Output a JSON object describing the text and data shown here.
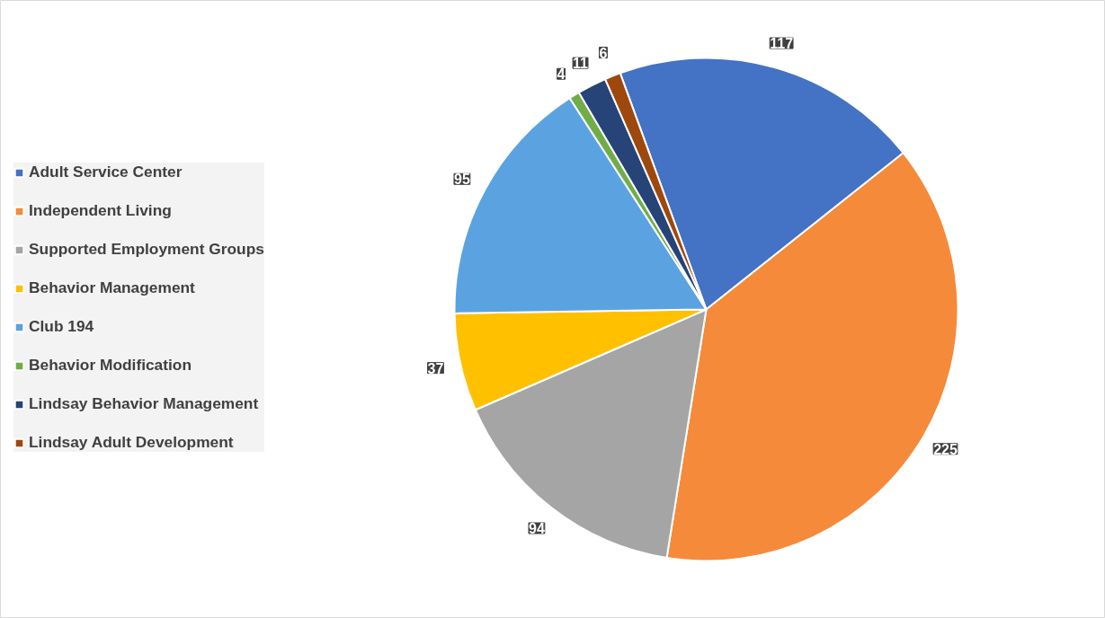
{
  "chart_data": {
    "type": "pie",
    "categories": [
      "Adult Service Center",
      "Independent Living",
      "Supported Employment Groups",
      "Behavior Management",
      "Club 194",
      "Behavior Modification",
      "Lindsay Behavior Management",
      "Lindsay Adult Development"
    ],
    "values": [
      117,
      225,
      94,
      37,
      95,
      4,
      11,
      6
    ],
    "colors": [
      "#4472c4",
      "#f58a3a",
      "#a5a5a5",
      "#ffc000",
      "#5ba3e0",
      "#70ad47",
      "#264478",
      "#9e480e"
    ],
    "data_labels": true,
    "legend": "left"
  }
}
